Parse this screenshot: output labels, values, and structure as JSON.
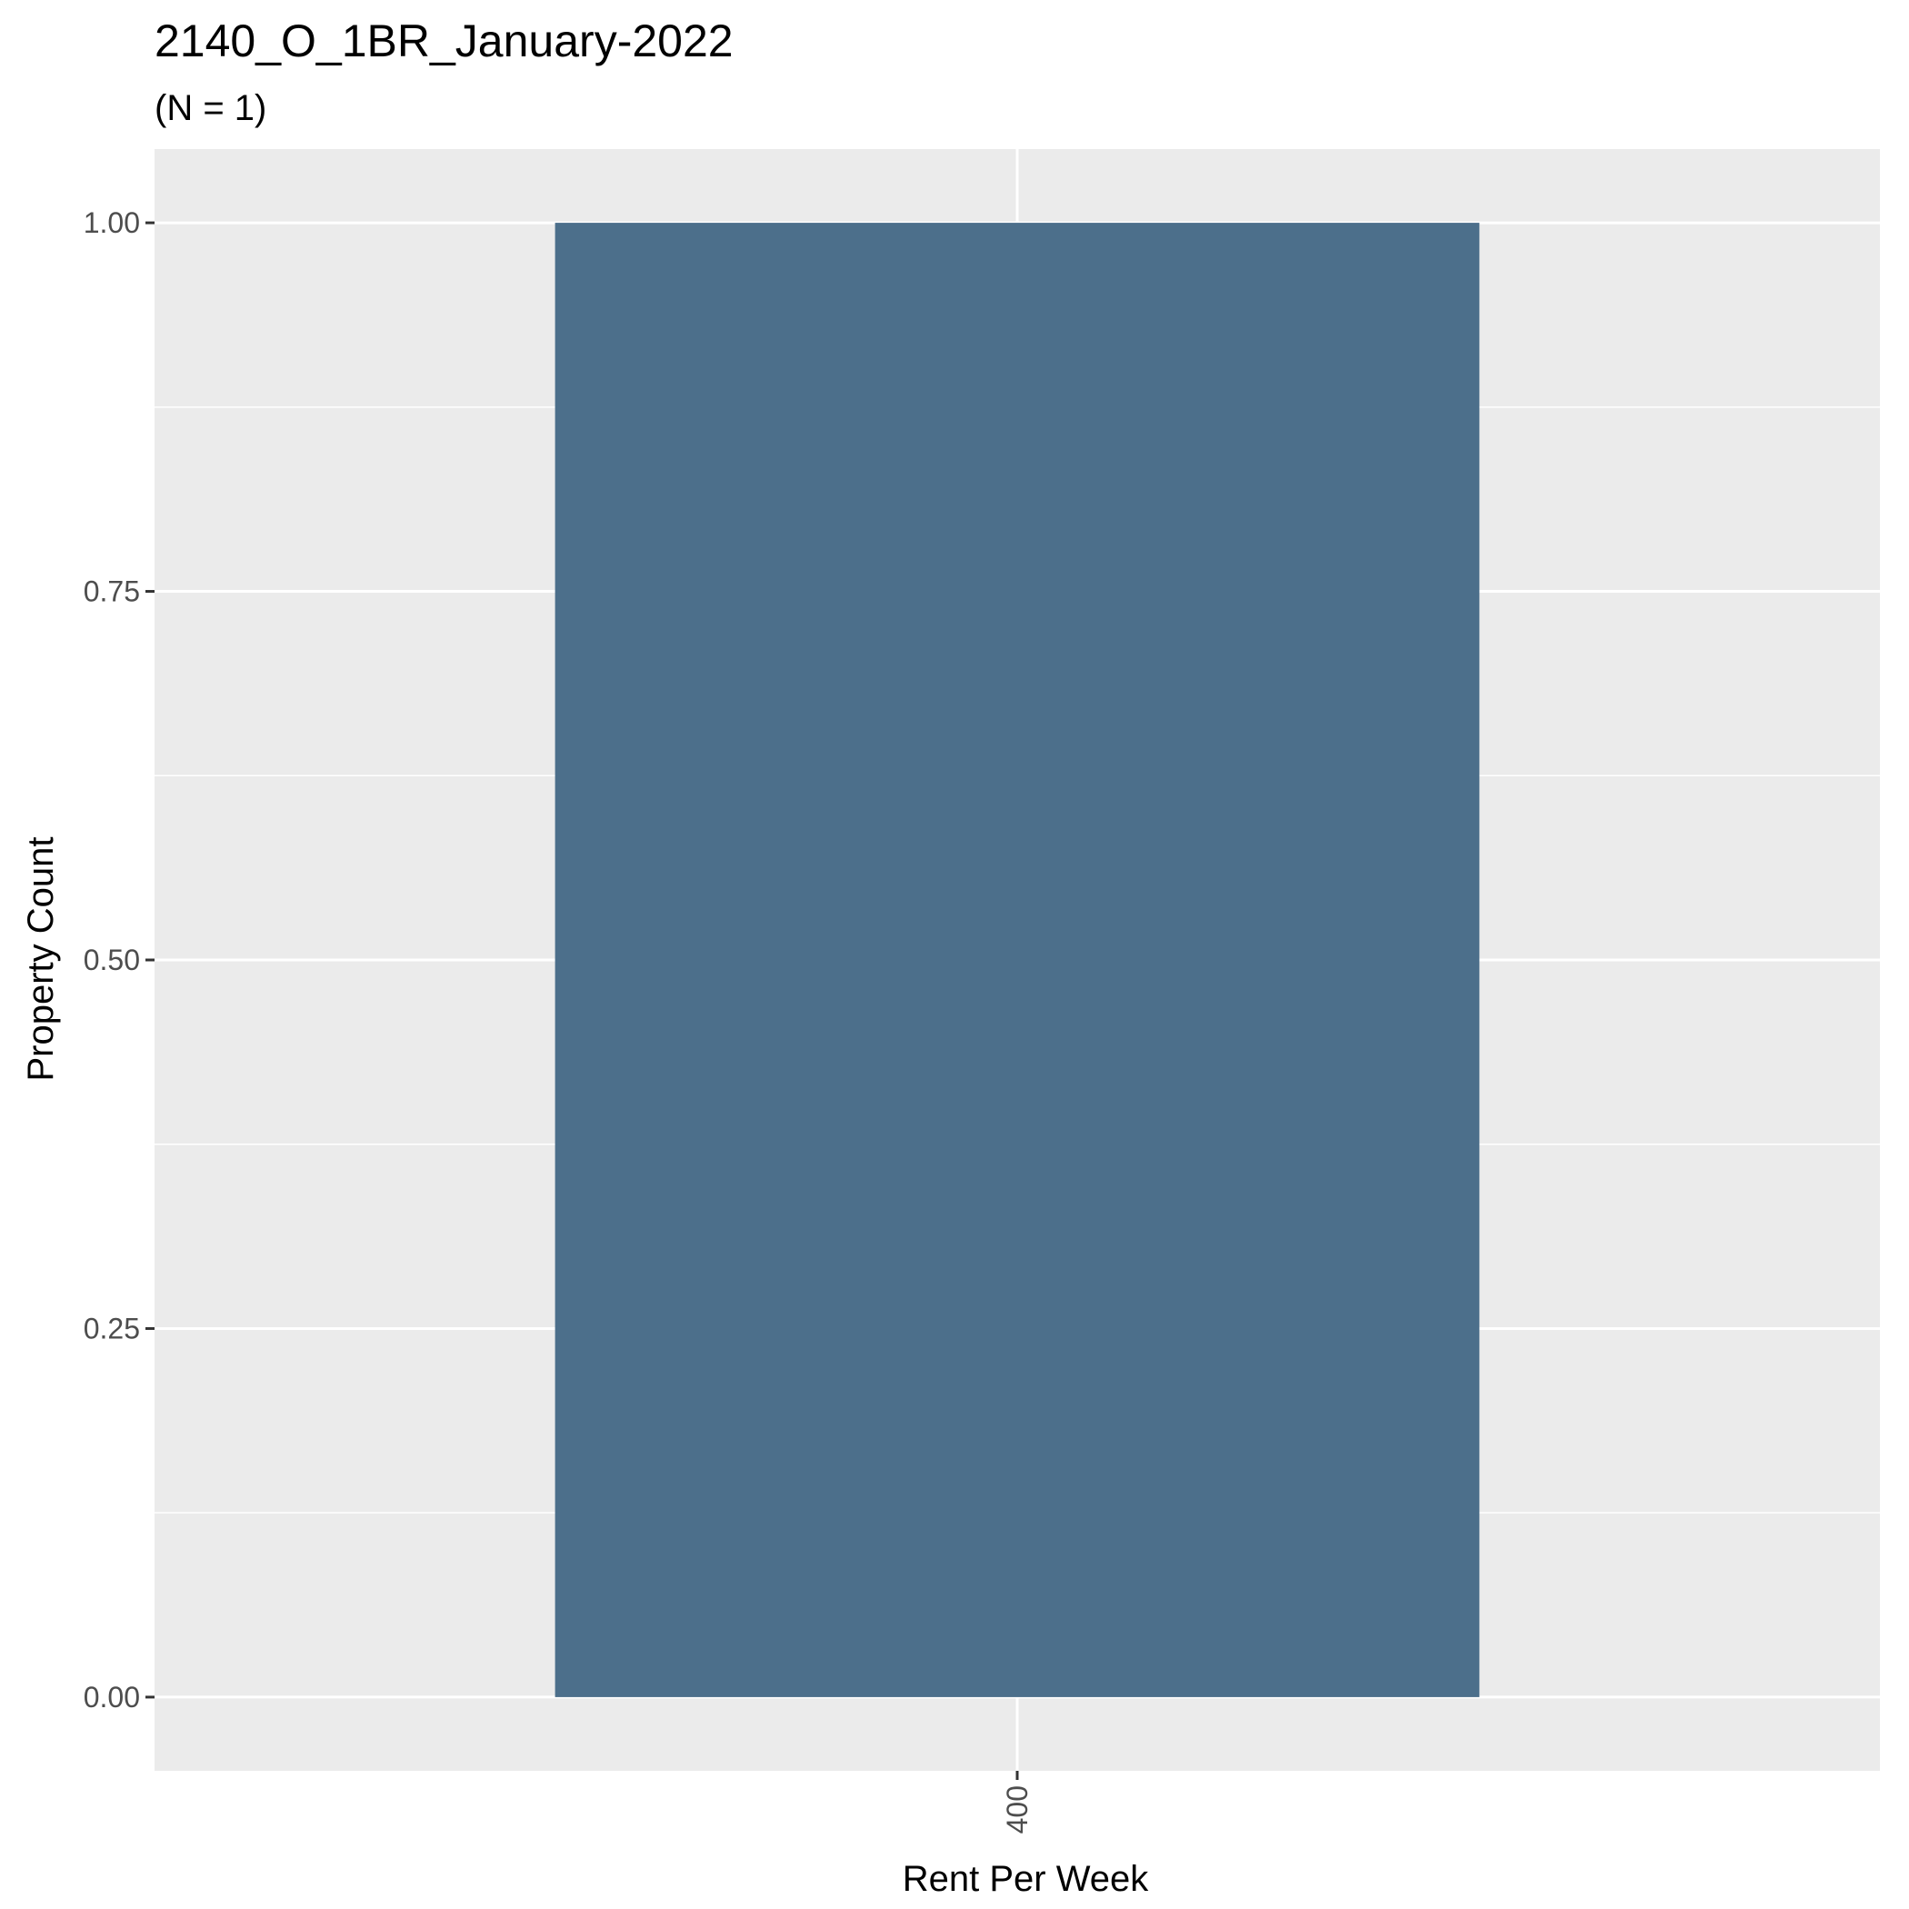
{
  "chart_data": {
    "type": "bar",
    "title": "2140_O_1BR_January-2022",
    "subtitle": "(N = 1)",
    "xlabel": "Rent Per Week",
    "ylabel": "Property Count",
    "categories": [
      "400"
    ],
    "values": [
      1
    ],
    "ylim": [
      -0.05,
      1.05
    ],
    "yticks": [
      0,
      0.25,
      0.5,
      0.75,
      1
    ],
    "ytick_labels": [
      "0.00",
      "0.25",
      "0.50",
      "0.75",
      "1.00"
    ],
    "grid": true,
    "legend": "none",
    "colors": {
      "bar": "#4c6f8b",
      "panel": "#ebebeb",
      "grid": "#ffffff"
    }
  }
}
